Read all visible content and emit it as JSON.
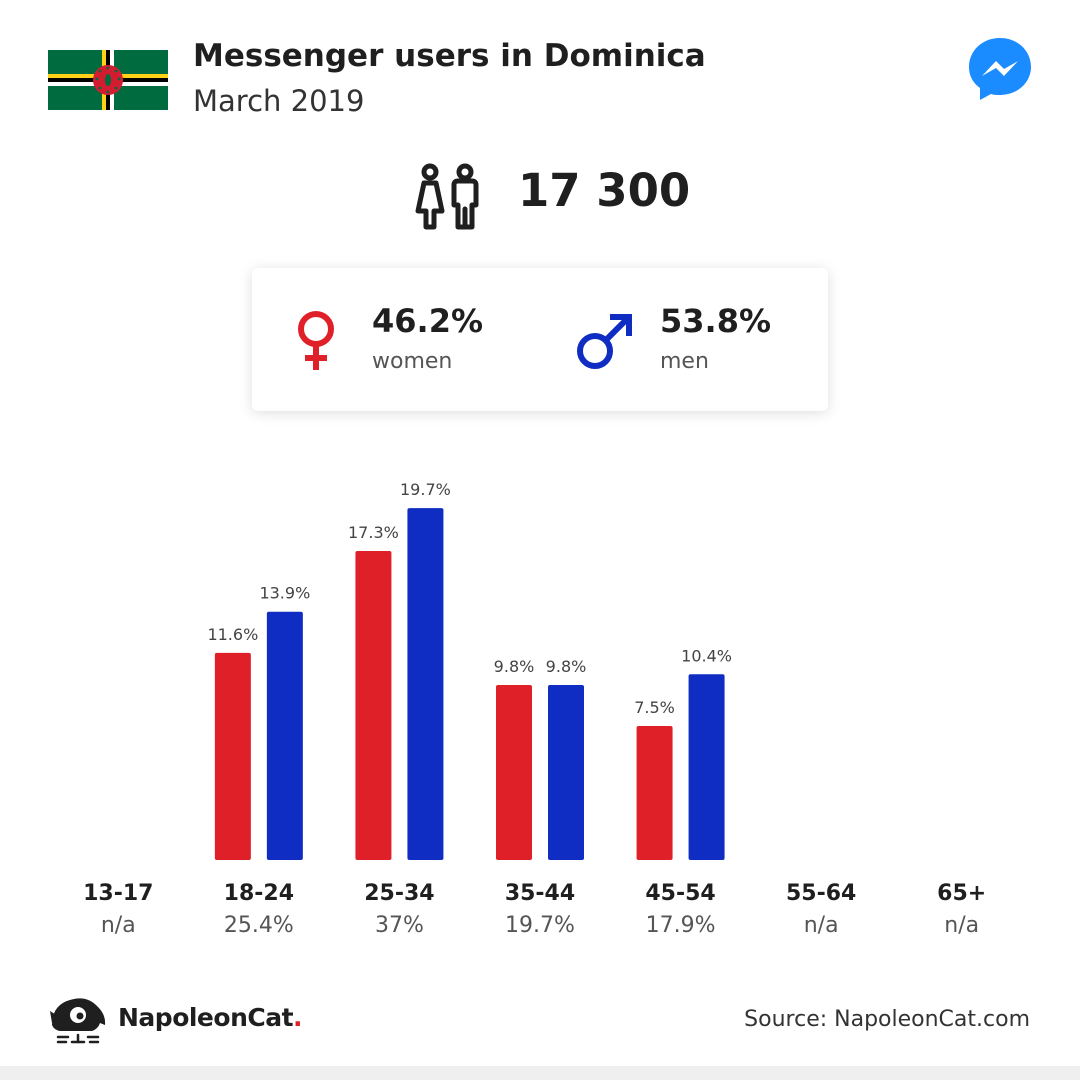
{
  "header": {
    "title": "Messenger users in Dominica",
    "subtitle": "March 2019",
    "flag_colors": {
      "green": "#006b3f",
      "yellow": "#fcd116",
      "black": "#000000",
      "white": "#ffffff",
      "red": "#d41c30"
    },
    "app_icon": "messenger-icon",
    "app_icon_color": "#1a8cff"
  },
  "total": {
    "icon": "users-icon",
    "value": "17 300"
  },
  "gender": {
    "women": {
      "icon": "female-symbol-icon",
      "percent": "46.2%",
      "label": "women",
      "color": "#e02028"
    },
    "men": {
      "icon": "male-symbol-icon",
      "percent": "53.8%",
      "label": "men",
      "color": "#0f2dc2"
    }
  },
  "chart_data": {
    "type": "bar",
    "categories": [
      "13-17",
      "18-24",
      "25-34",
      "35-44",
      "45-54",
      "55-64",
      "65+"
    ],
    "category_totals": [
      "n/a",
      "25.4%",
      "37%",
      "19.7%",
      "17.9%",
      "n/a",
      "n/a"
    ],
    "series": [
      {
        "values": [
          null,
          11.6,
          17.3,
          9.8,
          7.5,
          null,
          null
        ],
        "labels": [
          "",
          "11.6%",
          "17.3%",
          "9.8%",
          "7.5%",
          "",
          ""
        ],
        "color": "#e02028"
      },
      {
        "values": [
          null,
          13.9,
          19.7,
          9.8,
          10.4,
          null,
          null
        ],
        "labels": [
          "",
          "13.9%",
          "19.7%",
          "9.8%",
          "10.4%",
          "",
          ""
        ],
        "color": "#0f2dc2"
      }
    ],
    "grid": false,
    "legend": "none"
  },
  "footer": {
    "brand": "NapoleonCat",
    "brand_dot": ".",
    "logo_icon": "napoleoncat-logo-icon",
    "source": "Source: NapoleonCat.com"
  }
}
